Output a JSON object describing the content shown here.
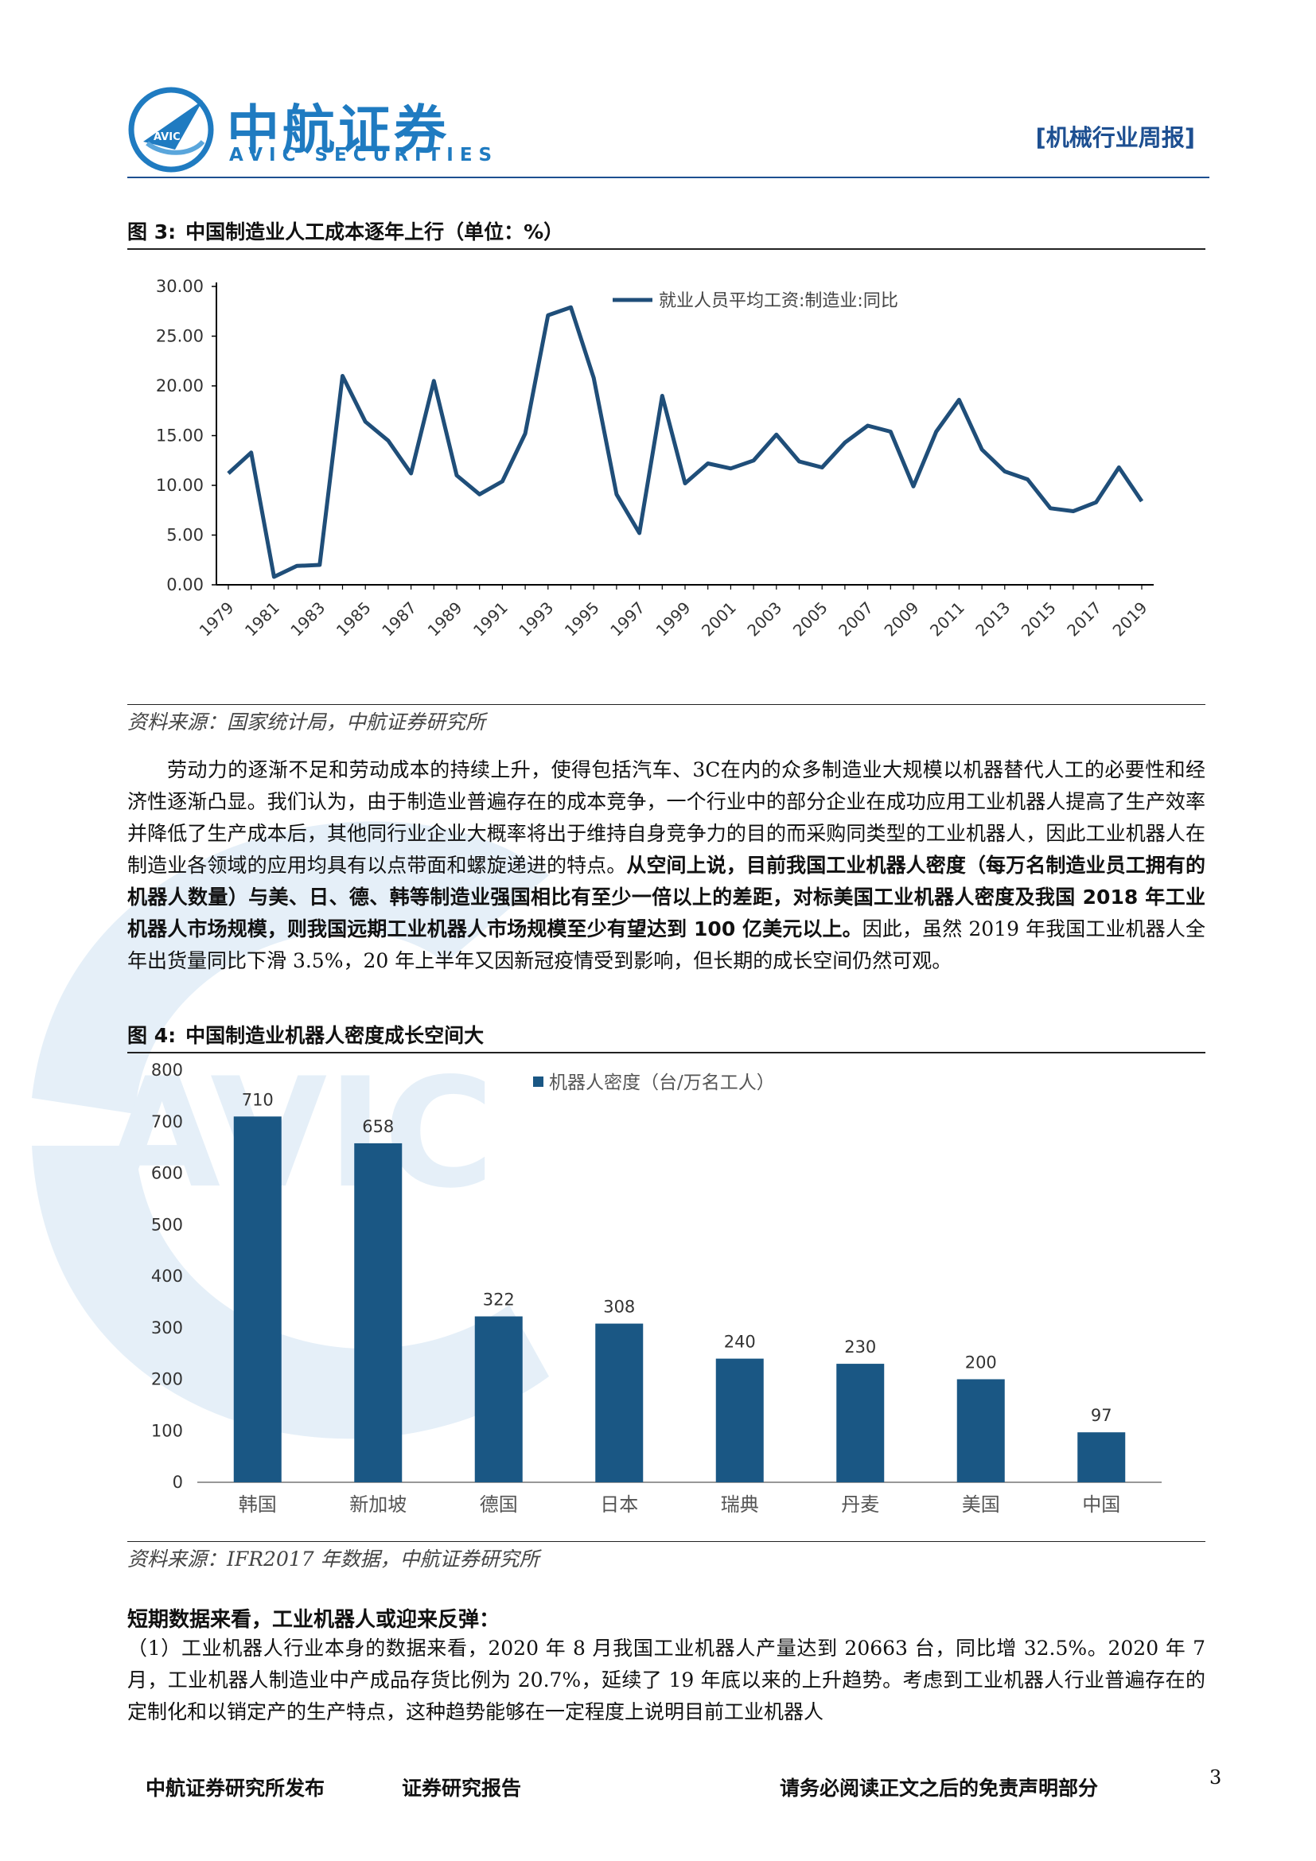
{
  "header": {
    "logo_cn": "中航证券",
    "logo_en": "AVIC SECURITIES",
    "logo_badge": "AVIC",
    "report_tag": "[机械行业周报]"
  },
  "figure3": {
    "label": "图 3:",
    "title": "中国制造业人工成本逐年上行（单位：%）",
    "source": "资料来源：国家统计局，中航证券研究所"
  },
  "paragraph1": {
    "text_a": "劳动力的逐渐不足和劳动成本的持续上升，使得包括汽车、3C在内的众多制造业大规模以机器替代人工的必要性和经济性逐渐凸显。我们认为，由于制造业普遍存在的成本竞争，一个行业中的部分企业在成功应用工业机器人提高了生产效率并降低了生产成本后，其他同行业企业大概率将出于维持自身竞争力的目的而采购同类型的工业机器人，因此工业机器人在制造业各领域的应用均具有以点带面和螺旋递进的特点。",
    "text_bold": "从空间上说，目前我国工业机器人密度（每万名制造业员工拥有的机器人数量）与美、日、德、韩等制造业强国相比有至少一倍以上的差距，对标美国工业机器人密度及我国 2018 年工业机器人市场规模，则我国远期工业机器人市场规模至少有望达到 100 亿美元以上。",
    "text_c": "因此，虽然 2019 年我国工业机器人全年出货量同比下滑 3.5%，20 年上半年又因新冠疫情受到影响，但长期的成长空间仍然可观。"
  },
  "figure4": {
    "label": "图 4:",
    "title": "中国制造业机器人密度成长空间大",
    "source": "资料来源：IFR2017 年数据，中航证券研究所"
  },
  "section": {
    "subhead": "短期数据来看，工业机器人或迎来反弹：",
    "text": "（1）工业机器人行业本身的数据来看，2020 年 8 月我国工业机器人产量达到 20663 台，同比增 32.5%。2020 年 7 月，工业机器人制造业中产成品存货比例为 20.7%，延续了 19 年底以来的上升趋势。考虑到工业机器人行业普遍存在的定制化和以销定产的生产特点，这种趋势能够在一定程度上说明目前工业机器人"
  },
  "footer": {
    "left": "中航证券研究所发布",
    "middle": "证券研究报告",
    "right": "请务必阅读正文之后的免责声明部分",
    "page": "3"
  },
  "chart_data": [
    {
      "type": "line",
      "title": "",
      "legend_position": "top-right",
      "color": "#1f4e79",
      "x": [
        1979,
        1980,
        1981,
        1982,
        1983,
        1984,
        1985,
        1986,
        1987,
        1988,
        1989,
        1990,
        1991,
        1992,
        1993,
        1994,
        1995,
        1996,
        1997,
        1998,
        1999,
        2000,
        2001,
        2002,
        2003,
        2004,
        2005,
        2006,
        2007,
        2008,
        2009,
        2010,
        2011,
        2012,
        2013,
        2014,
        2015,
        2016,
        2017,
        2018,
        2019
      ],
      "x_tick_labels": [
        "1979",
        "1981",
        "1983",
        "1985",
        "1987",
        "1989",
        "1991",
        "1993",
        "1995",
        "1997",
        "1999",
        "2001",
        "2003",
        "2005",
        "2007",
        "2009",
        "2011",
        "2013",
        "2015",
        "2017",
        "2019"
      ],
      "series": [
        {
          "name": "就业人员平均工资:制造业:同比",
          "values": [
            11.2,
            13.3,
            0.8,
            1.9,
            2.0,
            21.0,
            16.4,
            14.5,
            11.2,
            20.5,
            11.0,
            9.1,
            10.4,
            15.2,
            27.1,
            27.9,
            20.8,
            9.1,
            5.2,
            19.0,
            10.2,
            12.2,
            11.7,
            12.5,
            15.1,
            12.4,
            11.8,
            14.3,
            16.0,
            15.4,
            9.9,
            15.4,
            18.6,
            13.6,
            11.4,
            10.6,
            7.7,
            7.4,
            8.3,
            11.8,
            8.4
          ]
        }
      ],
      "ylim": [
        0,
        30
      ],
      "y_ticks": [
        "0.00",
        "5.00",
        "10.00",
        "15.00",
        "20.00",
        "25.00",
        "30.00"
      ]
    },
    {
      "type": "bar",
      "title": "",
      "legend_position": "top-center",
      "color": "#1a5784",
      "categories": [
        "韩国",
        "新加坡",
        "德国",
        "日本",
        "瑞典",
        "丹麦",
        "美国",
        "中国"
      ],
      "series": [
        {
          "name": "机器人密度（台/万名工人）",
          "values": [
            710,
            658,
            322,
            308,
            240,
            230,
            200,
            97
          ]
        }
      ],
      "ylim": [
        0,
        800
      ],
      "y_ticks": [
        "0",
        "100",
        "200",
        "300",
        "400",
        "500",
        "600",
        "700",
        "800"
      ]
    }
  ]
}
